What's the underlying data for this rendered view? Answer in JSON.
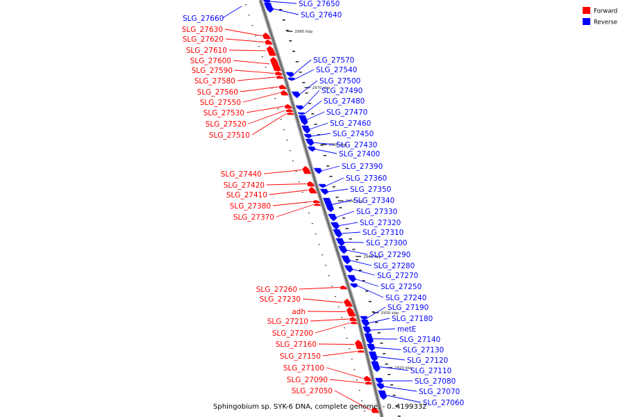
{
  "caption": "Sphingobium sp. SYK-6 DNA, complete genome. - 0..4199332",
  "legend": [
    {
      "label": "Forward",
      "color": "#ff0000"
    },
    {
      "label": "Reverse",
      "color": "#0000ff"
    }
  ],
  "colors": {
    "forward": "#ff0000",
    "reverse": "#0000ff",
    "backbone": "#888888"
  },
  "kbp_marks": [
    "2980 kbp",
    "2970 kbp",
    "2960 kbp",
    "2950 kbp",
    "2940 kbp",
    "2930 kbp",
    "2920 kbp"
  ],
  "forward_genes": [
    "SLG_27630",
    "SLG_27620",
    "SLG_27610",
    "SLG_27600",
    "SLG_27590",
    "SLG_27580",
    "SLG_27560",
    "SLG_27550",
    "SLG_27530",
    "SLG_27520",
    "SLG_27510",
    "SLG_27440",
    "SLG_27420",
    "SLG_27410",
    "SLG_27380",
    "SLG_27370",
    "SLG_27260",
    "SLG_27230",
    "adh",
    "SLG_27210",
    "SLG_27200",
    "SLG_27160",
    "SLG_27150",
    "SLG_27100",
    "SLG_27090",
    "SLG_27050"
  ],
  "reverse_genes": [
    "SLG_27660",
    "SLG_27650",
    "SLG_27640",
    "SLG_27570",
    "SLG_27540",
    "SLG_27500",
    "SLG_27490",
    "SLG_27480",
    "SLG_27470",
    "SLG_27460",
    "SLG_27450",
    "SLG_27430",
    "SLG_27400",
    "SLG_27390",
    "SLG_27360",
    "SLG_27350",
    "SLG_27340",
    "SLG_27330",
    "SLG_27320",
    "SLG_27310",
    "SLG_27300",
    "SLG_27290",
    "SLG_27280",
    "SLG_27270",
    "SLG_27250",
    "SLG_27240",
    "SLG_27190",
    "SLG_27180",
    "metE",
    "SLG_27140",
    "SLG_27130",
    "SLG_27120",
    "SLG_27110",
    "SLG_27080",
    "SLG_27070",
    "SLG_27060"
  ]
}
